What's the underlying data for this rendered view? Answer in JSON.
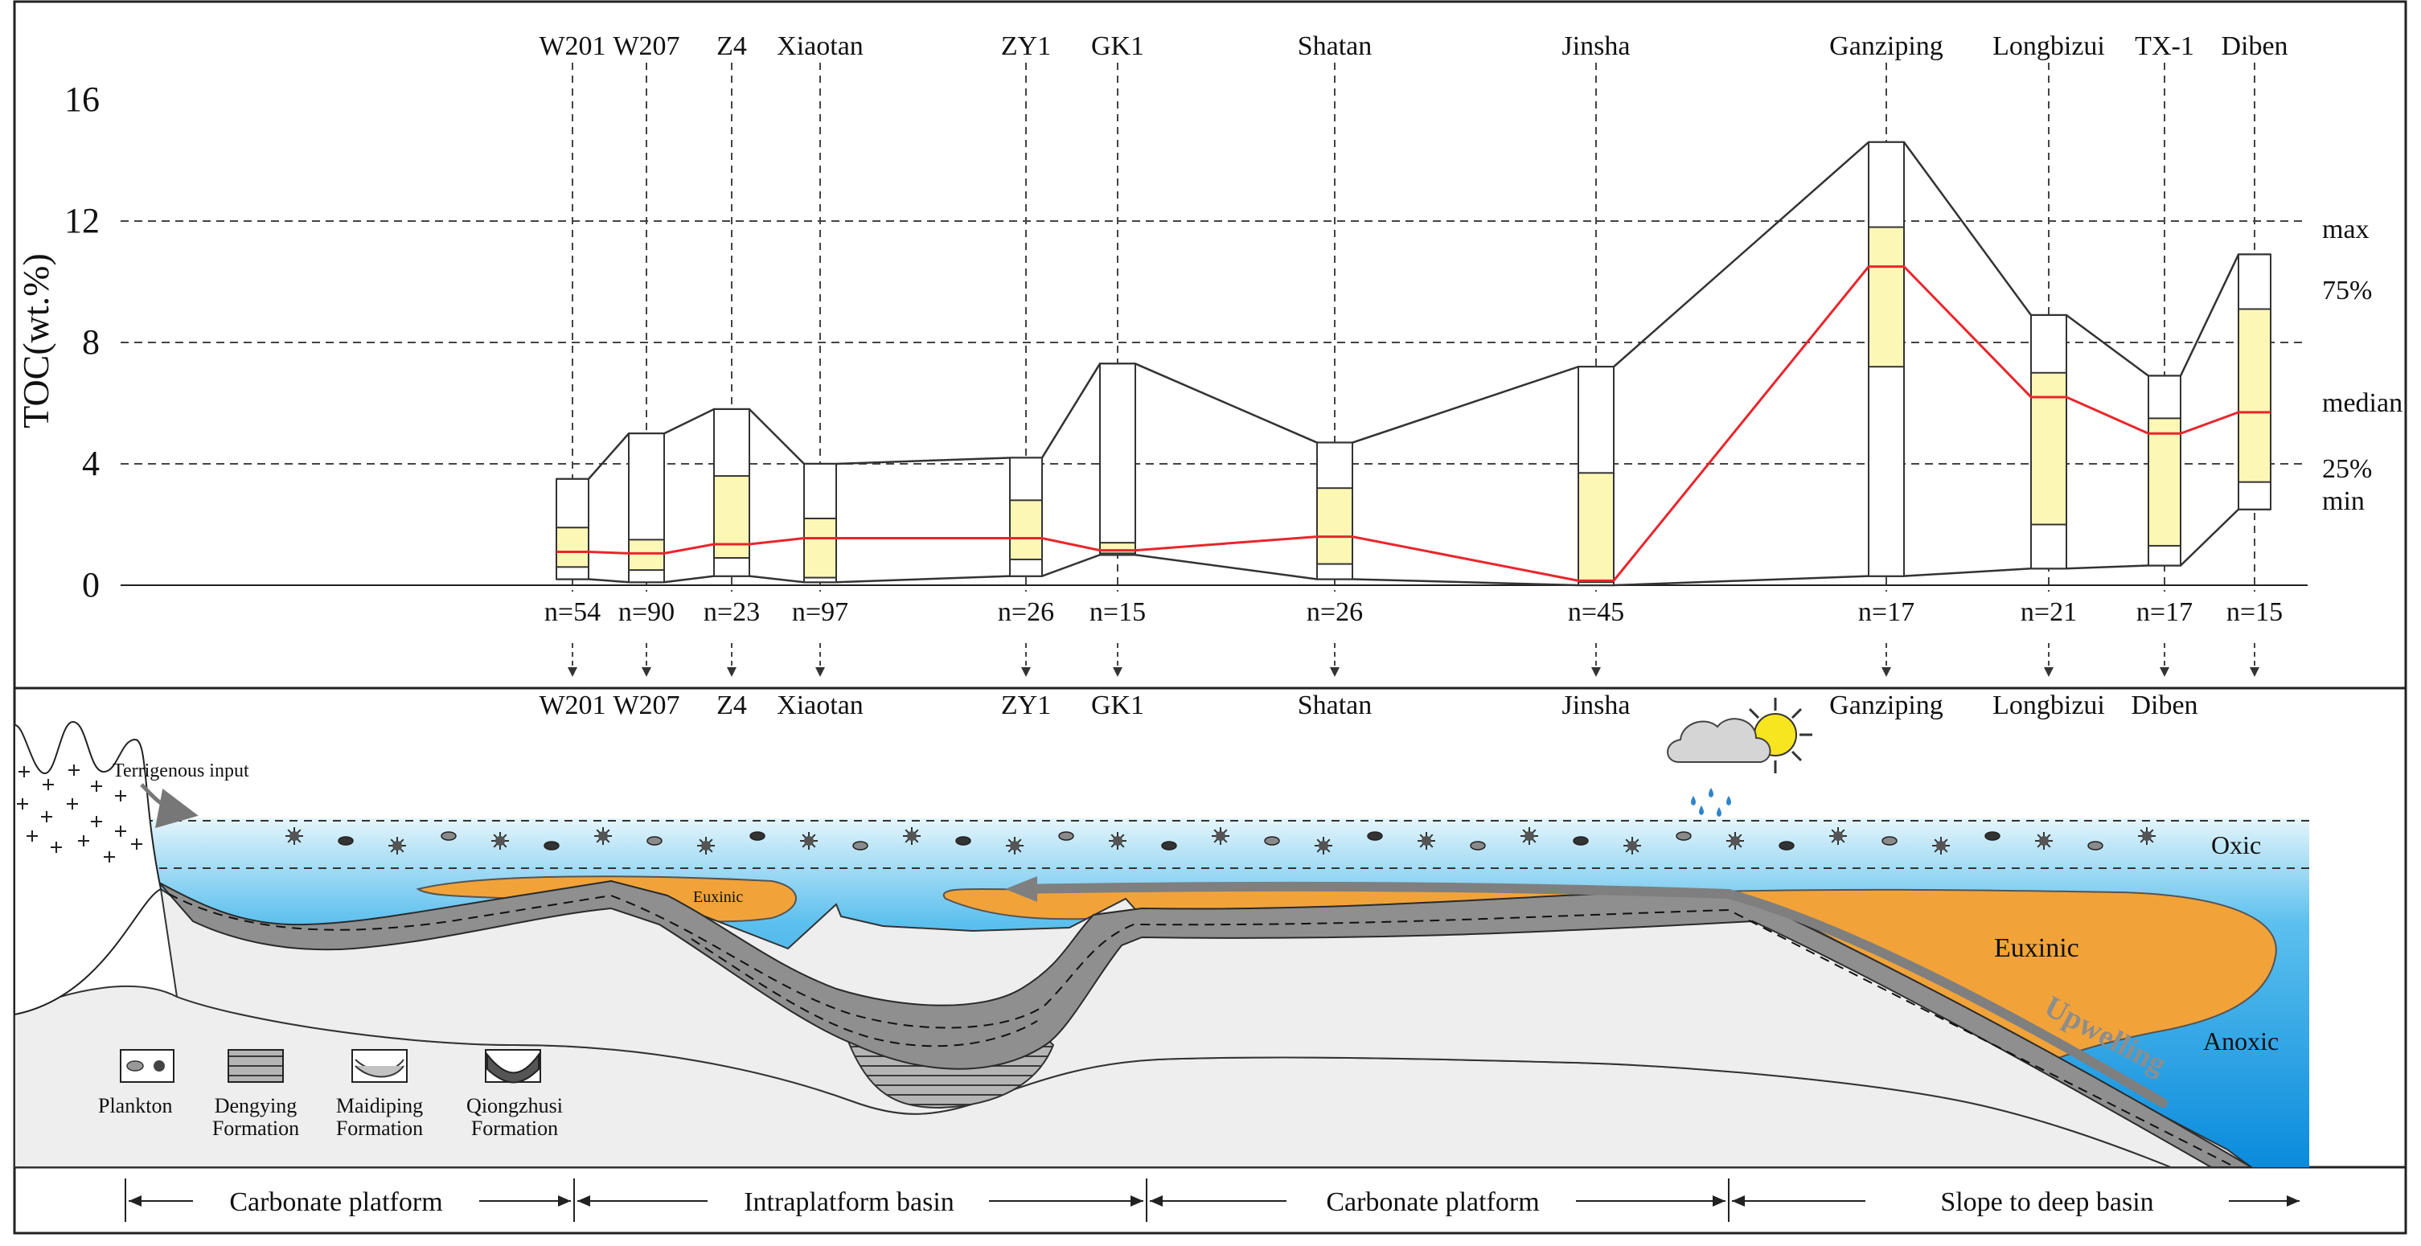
{
  "chart_data": {
    "type": "box",
    "y_axis_label": "TOC(wt.%)",
    "y_ticks": [
      0,
      4,
      8,
      12,
      16
    ],
    "ylim": [
      0,
      16
    ],
    "gridlines": "dashed at 4, 8, 12",
    "box_legend": [
      "max",
      "75%",
      "median",
      "25%",
      "min"
    ],
    "median_line_color": "#e8262c",
    "iqr_fill_color": "#fdf7b6",
    "wells": [
      {
        "name": "W201",
        "n_label": "n=54",
        "min": 0.2,
        "q1": 0.6,
        "median": 1.1,
        "q3": 1.9,
        "max": 3.5
      },
      {
        "name": "W207",
        "n_label": "n=90",
        "min": 0.1,
        "q1": 0.5,
        "median": 1.05,
        "q3": 1.5,
        "max": 5.0
      },
      {
        "name": "Z4",
        "n_label": "n=23",
        "min": 0.3,
        "q1": 0.9,
        "median": 1.35,
        "q3": 3.6,
        "max": 5.8
      },
      {
        "name": "Xiaotan",
        "n_label": "n=97",
        "min": 0.1,
        "q1": 0.25,
        "median": 1.55,
        "q3": 2.2,
        "max": 4.0
      },
      {
        "name": "ZY1",
        "n_label": "n=26",
        "min": 0.3,
        "q1": 0.85,
        "median": 1.55,
        "q3": 2.8,
        "max": 4.2
      },
      {
        "name": "GK1",
        "n_label": "n=15",
        "min": 1.0,
        "q1": 1.05,
        "median": 1.15,
        "q3": 1.4,
        "max": 7.3
      },
      {
        "name": "Shatan",
        "n_label": "n=26",
        "min": 0.2,
        "q1": 0.7,
        "median": 1.6,
        "q3": 3.2,
        "max": 4.7
      },
      {
        "name": "Jinsha",
        "n_label": "n=45",
        "min": 0.0,
        "q1": 0.1,
        "median": 0.15,
        "q3": 3.7,
        "max": 7.2
      },
      {
        "name": "Ganziping",
        "n_label": "n=17",
        "min": 0.3,
        "q1": 7.2,
        "median": 10.5,
        "q3": 11.8,
        "max": 14.6
      },
      {
        "name": "Longbizui",
        "n_label": "n=21",
        "min": 0.55,
        "q1": 2.0,
        "median": 6.2,
        "q3": 7.0,
        "max": 8.9
      },
      {
        "name": "TX-1",
        "n_label": "n=17",
        "min": 0.65,
        "q1": 1.3,
        "median": 5.0,
        "q3": 5.5,
        "max": 6.9
      },
      {
        "name": "Diben",
        "n_label": "n=15",
        "min": 2.5,
        "q1": 3.4,
        "median": 5.7,
        "q3": 9.1,
        "max": 10.9
      }
    ]
  },
  "section_labels": [
    "W201",
    "W207",
    "Z4",
    "Xiaotan",
    "ZY1",
    "GK1",
    "Shatan",
    "Jinsha",
    "Ganziping",
    "Longbizui",
    "Diben"
  ],
  "cross_section": {
    "terrigenous_label": "Terrigenous input",
    "oxic_label": "Oxic",
    "euxinic_small_label": "Euxinic",
    "euxinic_large_label": "Euxinic",
    "anoxic_label": "Anoxic",
    "upwelling_label": "Upwelling",
    "colors": {
      "water_top": "#dbf2fb",
      "water_bottom": "#0f8fdc",
      "euxinic": "#f1a33a",
      "sediment": "#9c9c9c",
      "basement": "#eeeeee"
    }
  },
  "legend": {
    "plankton": "Plankton",
    "dengying_1": "Dengying",
    "dengying_2": "Formation",
    "maidiping_1": "Maidiping",
    "maidiping_2": "Formation",
    "qiongzhusi_1": "Qiongzhusi",
    "qiongzhusi_2": "Formation"
  },
  "environments": [
    "Carbonate platform",
    "Intraplatform basin",
    "Carbonate platform",
    "Slope to deep basin"
  ]
}
